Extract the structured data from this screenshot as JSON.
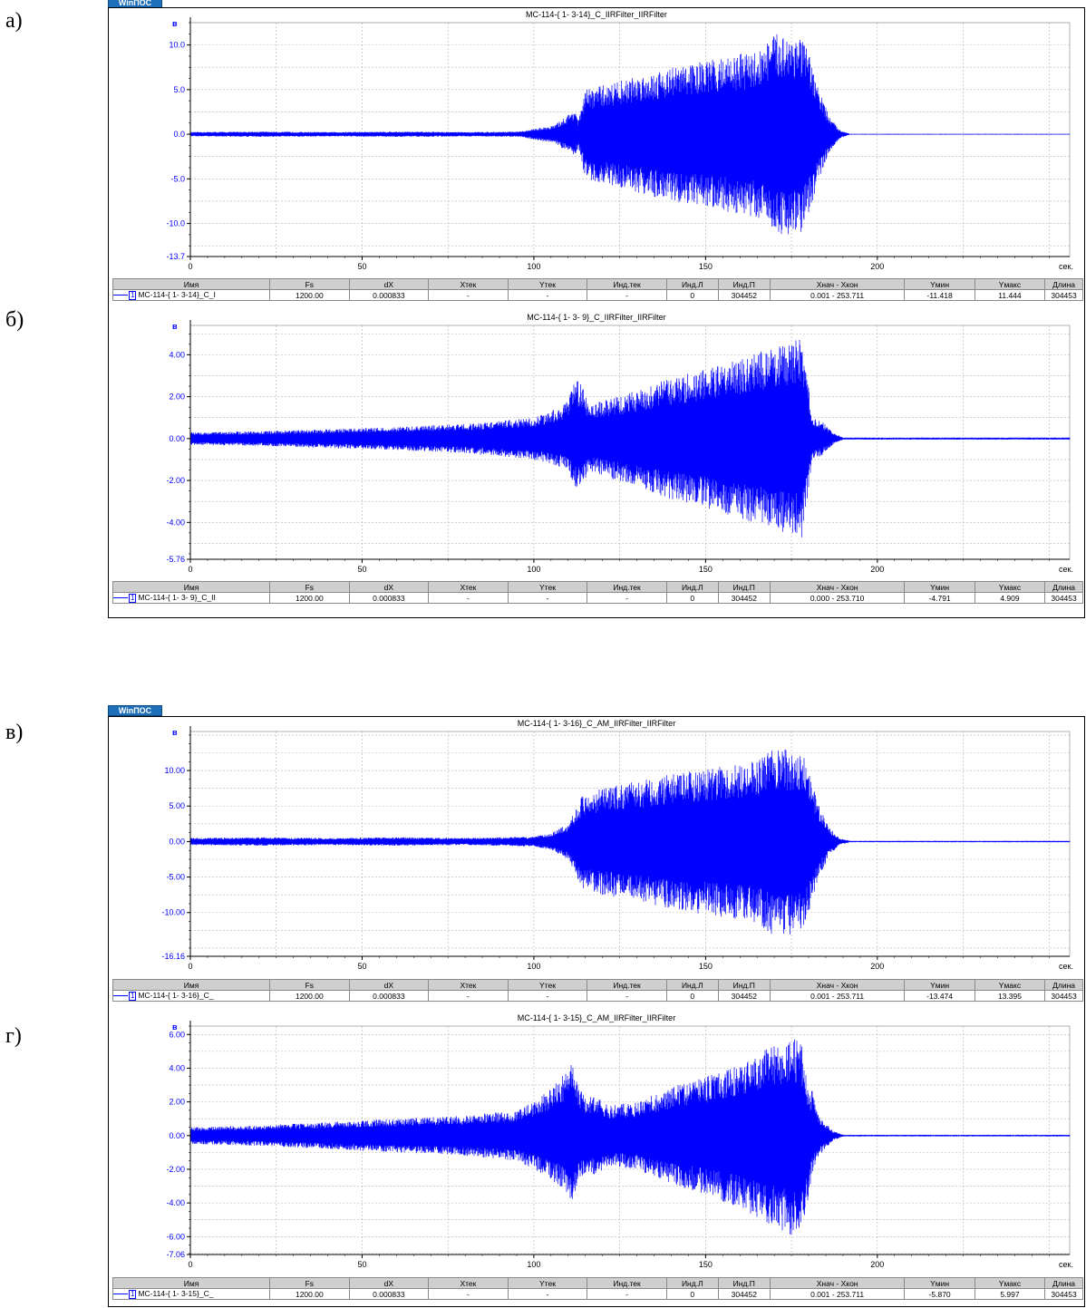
{
  "colors": {
    "signal": "#0000ff",
    "axis": "#000000",
    "grid": "#b4b4b4",
    "axis_labels": "#0000ff"
  },
  "logo_text": "WinПОС",
  "table_headers": [
    "Имя",
    "Fs",
    "dX",
    "Xтек",
    "Yтек",
    "Инд.тек",
    "Инд.Л",
    "Инд.П",
    "Xнач - Xкон",
    "Yмин",
    "Yмакс",
    "Длина"
  ],
  "panels": [
    {
      "label": "а)"
    },
    {
      "label": "б)"
    },
    {
      "label": "в)"
    },
    {
      "label": "г)"
    }
  ],
  "chart_data": [
    {
      "type": "line",
      "title": "MC-114-{ 1- 3-14}_C_IIRFilter_IIRFilter",
      "ylabel": "в",
      "xunit": "сек.",
      "xlim": [
        0,
        256
      ],
      "ylim": [
        -13.7,
        12.5
      ],
      "xticks": [
        "0",
        "50",
        "100",
        "150",
        "200"
      ],
      "yticks": [
        {
          "v": 10,
          "t": "10.0"
        },
        {
          "v": 5,
          "t": "5.0"
        },
        {
          "v": 0,
          "t": "0.0"
        },
        {
          "v": -5,
          "t": "-5.0"
        },
        {
          "v": -10,
          "t": "-10.0"
        },
        {
          "v": -13.7,
          "t": "-13.7"
        }
      ],
      "envelope": {
        "x": [
          0,
          20,
          40,
          60,
          80,
          96,
          100,
          106,
          110,
          112,
          113,
          115,
          120,
          130,
          140,
          150,
          160,
          165,
          170,
          175,
          178,
          180,
          183,
          186,
          189,
          192,
          256
        ],
        "max": [
          0.25,
          0.3,
          0.25,
          0.3,
          0.25,
          0.3,
          0.6,
          1.0,
          2.2,
          3.0,
          1.5,
          5.0,
          5.5,
          6.5,
          7.5,
          8.2,
          9.0,
          9.3,
          11.2,
          11.3,
          11.0,
          9.0,
          5.0,
          2.0,
          0.5,
          0.05,
          0.05
        ],
        "min": [
          -0.25,
          -0.3,
          -0.25,
          -0.3,
          -0.25,
          -0.3,
          -0.6,
          -1.0,
          -2.0,
          -2.5,
          -1.5,
          -5.0,
          -5.5,
          -6.5,
          -7.5,
          -8.2,
          -9.0,
          -9.3,
          -11.2,
          -11.4,
          -11.0,
          -9.0,
          -5.0,
          -2.0,
          -0.5,
          -0.05,
          -0.05
        ]
      },
      "stats": {
        "name": "MC-114-{ 1- 3-14}_C_I",
        "index": "1",
        "fs": "1200.00",
        "dx": "0.000833",
        "xcur": "-",
        "ycur": "-",
        "icur": "-",
        "il": "0",
        "ip": "304452",
        "xrange": "0.001 - 253.711",
        "ymin": "-11.418",
        "ymax": "11.444",
        "len": "304453"
      }
    },
    {
      "type": "line",
      "title": "MC-114-{ 1- 3- 9}_C_IIRFilter_IIRFilter",
      "ylabel": "в",
      "xunit": "сек.",
      "xlim": [
        0,
        256
      ],
      "ylim": [
        -5.76,
        5.4
      ],
      "xticks": [
        "0",
        "50",
        "100",
        "150",
        "200"
      ],
      "yticks": [
        {
          "v": 4,
          "t": "4.00"
        },
        {
          "v": 2,
          "t": "2.00"
        },
        {
          "v": 0,
          "t": "0.00"
        },
        {
          "v": -2,
          "t": "-2.00"
        },
        {
          "v": -4,
          "t": "-4.00"
        },
        {
          "v": -5.76,
          "t": "-5.76"
        }
      ],
      "envelope": {
        "x": [
          0,
          20,
          40,
          60,
          80,
          100,
          105,
          110,
          112,
          114,
          116,
          120,
          130,
          140,
          150,
          160,
          165,
          170,
          175,
          178,
          180,
          181,
          184,
          187,
          190,
          256
        ],
        "max": [
          0.3,
          0.35,
          0.45,
          0.55,
          0.7,
          1.0,
          1.3,
          1.8,
          2.9,
          2.6,
          1.6,
          1.8,
          2.3,
          2.9,
          3.3,
          3.8,
          4.1,
          4.4,
          4.6,
          4.8,
          2.5,
          1.0,
          0.8,
          0.3,
          0.05,
          0.05
        ],
        "min": [
          -0.3,
          -0.35,
          -0.45,
          -0.55,
          -0.7,
          -1.0,
          -1.2,
          -1.5,
          -2.4,
          -2.3,
          -1.5,
          -1.8,
          -2.3,
          -2.9,
          -3.3,
          -3.8,
          -4.1,
          -4.3,
          -4.6,
          -4.8,
          -2.5,
          -1.0,
          -0.8,
          -0.3,
          -0.05,
          -0.05
        ]
      },
      "stats": {
        "name": "MC-114-{ 1- 3- 9}_C_II",
        "index": "1",
        "fs": "1200.00",
        "dx": "0.000833",
        "xcur": "-",
        "ycur": "-",
        "icur": "-",
        "il": "0",
        "ip": "304452",
        "xrange": "0.000 - 253.710",
        "ymin": "-4.791",
        "ymax": "4.909",
        "len": "304453"
      }
    },
    {
      "type": "line",
      "title": "MC-114-{ 1- 3-16}_C_AM_IIRFilter_IIRFilter",
      "ylabel": "в",
      "xunit": "сек.",
      "xlim": [
        0,
        256
      ],
      "ylim": [
        -16.16,
        15.5
      ],
      "xticks": [
        "0",
        "50",
        "100",
        "150",
        "200"
      ],
      "yticks": [
        {
          "v": 10,
          "t": "10.00"
        },
        {
          "v": 5,
          "t": "5.00"
        },
        {
          "v": 0,
          "t": "0.00"
        },
        {
          "v": -5,
          "t": "-5.00"
        },
        {
          "v": -10,
          "t": "-10.00"
        },
        {
          "v": -16.16,
          "t": "-16.16"
        }
      ],
      "envelope": {
        "x": [
          0,
          20,
          40,
          60,
          80,
          100,
          105,
          110,
          112,
          114,
          120,
          130,
          140,
          150,
          160,
          165,
          170,
          175,
          178,
          180,
          183,
          186,
          189,
          192,
          256
        ],
        "max": [
          0.5,
          0.6,
          0.5,
          0.6,
          0.5,
          0.7,
          1.2,
          2.5,
          4.5,
          6.5,
          7.5,
          8.5,
          9.5,
          10.3,
          11.0,
          11.5,
          13.3,
          13.0,
          12.8,
          10.0,
          5.0,
          2.0,
          0.5,
          0.1,
          0.1
        ],
        "min": [
          -0.5,
          -0.6,
          -0.5,
          -0.6,
          -0.5,
          -0.7,
          -1.2,
          -2.5,
          -4.5,
          -6.5,
          -7.5,
          -8.5,
          -9.5,
          -10.3,
          -11.0,
          -11.5,
          -13.3,
          -13.2,
          -12.8,
          -10.0,
          -5.0,
          -2.0,
          -0.5,
          -0.1,
          -0.1
        ]
      },
      "stats": {
        "name": "MC-114-{ 1- 3-16}_C_",
        "index": "1",
        "fs": "1200.00",
        "dx": "0.000833",
        "xcur": "-",
        "ycur": "-",
        "icur": "-",
        "il": "0",
        "ip": "304452",
        "xrange": "0.001 - 253.711",
        "ymin": "-13.474",
        "ymax": "13.395",
        "len": "304453"
      }
    },
    {
      "type": "line",
      "title": "MC-114-{ 1- 3-15}_C_AM_IIRFilter_IIRFilter",
      "ylabel": "в",
      "xunit": "сек.",
      "xlim": [
        0,
        256
      ],
      "ylim": [
        -7.06,
        6.5
      ],
      "xticks": [
        "0",
        "50",
        "100",
        "150",
        "200"
      ],
      "yticks": [
        {
          "v": 6,
          "t": "6.00"
        },
        {
          "v": 4,
          "t": "4.00"
        },
        {
          "v": 2,
          "t": "2.00"
        },
        {
          "v": 0,
          "t": "0.00"
        },
        {
          "v": -2,
          "t": "-2.00"
        },
        {
          "v": -4,
          "t": "-4.00"
        },
        {
          "v": -6,
          "t": "-6.00"
        },
        {
          "v": -7.06,
          "t": "-7.06"
        }
      ],
      "envelope": {
        "x": [
          0,
          20,
          40,
          60,
          80,
          95,
          100,
          105,
          108,
          111,
          113,
          115,
          118,
          122,
          130,
          140,
          150,
          160,
          165,
          170,
          175,
          178,
          180,
          181,
          183,
          187,
          190,
          256
        ],
        "max": [
          0.5,
          0.6,
          0.8,
          1.0,
          1.2,
          1.5,
          2.0,
          2.8,
          3.5,
          4.3,
          3.0,
          2.3,
          2.3,
          1.8,
          2.0,
          2.9,
          3.5,
          4.2,
          4.8,
          5.4,
          5.8,
          5.5,
          2.5,
          2.7,
          1.2,
          0.3,
          0.05,
          0.05
        ],
        "min": [
          -0.5,
          -0.6,
          -0.8,
          -1.0,
          -1.2,
          -1.5,
          -2.0,
          -2.6,
          -3.2,
          -3.9,
          -3.0,
          -2.3,
          -2.3,
          -1.8,
          -2.0,
          -2.9,
          -3.5,
          -4.3,
          -4.9,
          -5.4,
          -5.9,
          -5.5,
          -3.8,
          -2.2,
          -1.2,
          -0.3,
          -0.05,
          -0.05
        ]
      },
      "stats": {
        "name": "MC-114-{ 1- 3-15}_C_",
        "index": "1",
        "fs": "1200.00",
        "dx": "0.000833",
        "xcur": "-",
        "ycur": "-",
        "icur": "-",
        "il": "0",
        "ip": "304452",
        "xrange": "0.001 - 253.711",
        "ymin": "-5.870",
        "ymax": "5.997",
        "len": "304453"
      }
    }
  ]
}
